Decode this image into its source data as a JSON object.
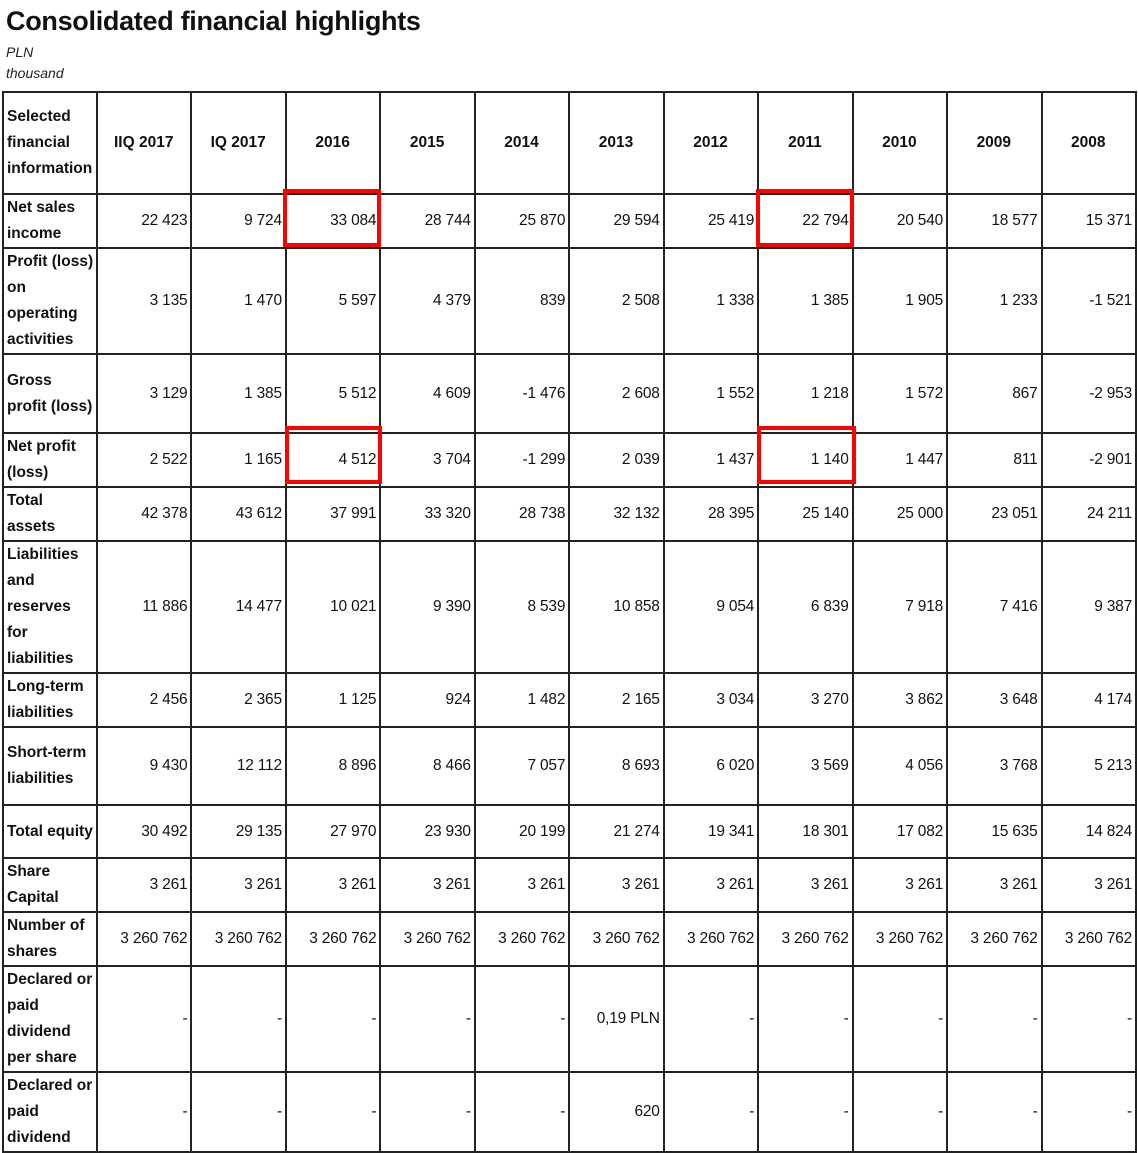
{
  "title": "Consolidated financial highlights",
  "unit_line1": "PLN",
  "unit_line2": "thousand",
  "highlight_color": "#ff0000",
  "table": {
    "header_label": "Selected financial information",
    "columns": [
      "IIQ 2017",
      "IQ 2017",
      "2016",
      "2015",
      "2014",
      "2013",
      "2012",
      "2011",
      "2010",
      "2009",
      "2008"
    ],
    "rows": [
      {
        "label": "Net sales income",
        "values": [
          "22 423",
          "9 724",
          "33 084",
          "28 744",
          "25 870",
          "29 594",
          "25 419",
          "22 794",
          "20 540",
          "18 577",
          "15 371"
        ]
      },
      {
        "label": "Profit (loss) on operating activities",
        "values": [
          "3 135",
          "1 470",
          "5 597",
          "4 379",
          "839",
          "2 508",
          "1 338",
          "1 385",
          "1 905",
          "1 233",
          "-1 521"
        ]
      },
      {
        "label": "Gross profit (loss)",
        "values": [
          "3 129",
          "1 385",
          "5 512",
          "4 609",
          "-1 476",
          "2 608",
          "1 552",
          "1 218",
          "1 572",
          "867",
          "-2 953"
        ]
      },
      {
        "label": "Net profit (loss)",
        "values": [
          "2 522",
          "1 165",
          "4 512",
          "3 704",
          "-1 299",
          "2 039",
          "1 437",
          "1 140",
          "1 447",
          "811",
          "-2 901"
        ]
      },
      {
        "label": "Total assets",
        "values": [
          "42 378",
          "43 612",
          "37 991",
          "33 320",
          "28 738",
          "32 132",
          "28 395",
          "25 140",
          "25 000",
          "23 051",
          "24 211"
        ]
      },
      {
        "label": "Liabilities and reserves for liabilities",
        "values": [
          "11 886",
          "14 477",
          "10 021",
          "9 390",
          "8 539",
          "10 858",
          "9 054",
          "6 839",
          "7 918",
          "7 416",
          "9 387"
        ]
      },
      {
        "label": "Long-term liabilities",
        "values": [
          "2 456",
          "2 365",
          "1 125",
          "924",
          "1 482",
          "2 165",
          "3 034",
          "3 270",
          "3 862",
          "3 648",
          "4 174"
        ]
      },
      {
        "label": "Short-term liabilities",
        "values": [
          "9 430",
          "12 112",
          "8 896",
          "8 466",
          "7 057",
          "8 693",
          "6 020",
          "3 569",
          "4 056",
          "3 768",
          "5 213"
        ]
      },
      {
        "label": "Total equity",
        "values": [
          "30 492",
          "29 135",
          "27 970",
          "23 930",
          "20 199",
          "21 274",
          "19 341",
          "18 301",
          "17 082",
          "15 635",
          "14 824"
        ]
      },
      {
        "label": "Share Capital",
        "values": [
          "3 261",
          "3 261",
          "3 261",
          "3 261",
          "3 261",
          "3 261",
          "3 261",
          "3 261",
          "3 261",
          "3 261",
          "3 261"
        ]
      },
      {
        "label": "Number of shares",
        "values": [
          "3 260 762",
          "3 260 762",
          "3 260 762",
          "3 260 762",
          "3 260 762",
          "3 260 762",
          "3 260 762",
          "3 260 762",
          "3 260 762",
          "3 260 762",
          "3 260 762"
        ]
      },
      {
        "label": "Declared or paid dividend per share",
        "values": [
          "-",
          "-",
          "-",
          "-",
          "-",
          "0,19 PLN",
          "-",
          "-",
          "-",
          "-",
          "-"
        ]
      },
      {
        "label": "Declared or paid dividend",
        "values": [
          "-",
          "-",
          "-",
          "-",
          "-",
          "620",
          "-",
          "-",
          "-",
          "-",
          "-"
        ]
      }
    ]
  }
}
